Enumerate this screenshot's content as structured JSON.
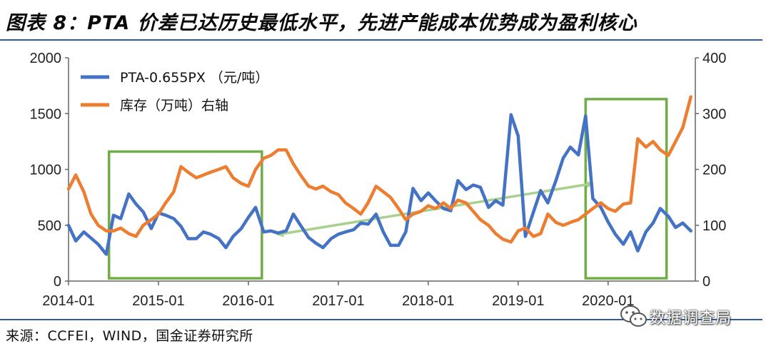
{
  "header": {
    "title": "图表 8：PTA 价差已达历史最低水平，先进产能成本优势成为盈利核心"
  },
  "footer": {
    "source": "来源：CCFEI，WIND，国金证券研究所"
  },
  "watermark": {
    "text": "数据调查局",
    "icon": "wechat-icon"
  },
  "chart_data": {
    "type": "line",
    "title": "",
    "x_ticks": [
      "2014-01",
      "2015-01",
      "2016-01",
      "2017-01",
      "2018-01",
      "2019-01",
      "2020-01"
    ],
    "y_left": {
      "min": 0,
      "max": 2000,
      "ticks": [
        0,
        500,
        1000,
        1500,
        2000
      ]
    },
    "y_right": {
      "min": 0,
      "max": 400,
      "ticks": [
        0,
        100,
        200,
        300,
        400
      ]
    },
    "legend_placement": "top-left",
    "grid": false,
    "series": [
      {
        "name": "PTA-0.655PX （元/吨）",
        "axis": "left",
        "color": "#4472c4",
        "points": [
          [
            2014.0,
            500
          ],
          [
            2014.08,
            360
          ],
          [
            2014.17,
            440
          ],
          [
            2014.33,
            330
          ],
          [
            2014.42,
            240
          ],
          [
            2014.5,
            590
          ],
          [
            2014.58,
            560
          ],
          [
            2014.67,
            780
          ],
          [
            2014.75,
            690
          ],
          [
            2014.83,
            620
          ],
          [
            2014.92,
            470
          ],
          [
            2015.0,
            610
          ],
          [
            2015.08,
            590
          ],
          [
            2015.17,
            560
          ],
          [
            2015.25,
            490
          ],
          [
            2015.33,
            380
          ],
          [
            2015.42,
            380
          ],
          [
            2015.5,
            440
          ],
          [
            2015.58,
            420
          ],
          [
            2015.67,
            380
          ],
          [
            2015.75,
            300
          ],
          [
            2015.83,
            400
          ],
          [
            2015.92,
            470
          ],
          [
            2016.0,
            570
          ],
          [
            2016.08,
            660
          ],
          [
            2016.17,
            440
          ],
          [
            2016.25,
            450
          ],
          [
            2016.33,
            430
          ],
          [
            2016.42,
            450
          ],
          [
            2016.5,
            600
          ],
          [
            2016.58,
            500
          ],
          [
            2016.67,
            390
          ],
          [
            2016.75,
            340
          ],
          [
            2016.83,
            300
          ],
          [
            2016.92,
            380
          ],
          [
            2017.0,
            420
          ],
          [
            2017.08,
            440
          ],
          [
            2017.17,
            460
          ],
          [
            2017.25,
            520
          ],
          [
            2017.33,
            510
          ],
          [
            2017.42,
            600
          ],
          [
            2017.5,
            440
          ],
          [
            2017.58,
            320
          ],
          [
            2017.67,
            320
          ],
          [
            2017.75,
            440
          ],
          [
            2017.83,
            830
          ],
          [
            2017.92,
            720
          ],
          [
            2018.0,
            790
          ],
          [
            2018.08,
            720
          ],
          [
            2018.17,
            650
          ],
          [
            2018.25,
            630
          ],
          [
            2018.33,
            900
          ],
          [
            2018.42,
            820
          ],
          [
            2018.5,
            860
          ],
          [
            2018.58,
            840
          ],
          [
            2018.67,
            660
          ],
          [
            2018.75,
            720
          ],
          [
            2018.83,
            680
          ],
          [
            2018.92,
            1490
          ],
          [
            2019.0,
            1300
          ],
          [
            2019.08,
            400
          ],
          [
            2019.17,
            620
          ],
          [
            2019.25,
            810
          ],
          [
            2019.33,
            700
          ],
          [
            2019.42,
            900
          ],
          [
            2019.5,
            1100
          ],
          [
            2019.58,
            1200
          ],
          [
            2019.67,
            1130
          ],
          [
            2019.75,
            1480
          ],
          [
            2019.83,
            740
          ],
          [
            2019.92,
            660
          ],
          [
            2020.0,
            530
          ],
          [
            2020.08,
            420
          ],
          [
            2020.17,
            330
          ],
          [
            2020.25,
            440
          ],
          [
            2020.33,
            270
          ],
          [
            2020.42,
            440
          ],
          [
            2020.5,
            520
          ],
          [
            2020.58,
            650
          ],
          [
            2020.67,
            580
          ],
          [
            2020.75,
            480
          ],
          [
            2020.83,
            520
          ],
          [
            2020.92,
            450
          ]
        ]
      },
      {
        "name": "库存（万吨）右轴",
        "axis": "right",
        "color": "#ed7d31",
        "points": [
          [
            2014.0,
            165
          ],
          [
            2014.08,
            190
          ],
          [
            2014.17,
            160
          ],
          [
            2014.25,
            120
          ],
          [
            2014.33,
            100
          ],
          [
            2014.42,
            90
          ],
          [
            2014.5,
            90
          ],
          [
            2014.58,
            95
          ],
          [
            2014.67,
            85
          ],
          [
            2014.75,
            80
          ],
          [
            2014.83,
            100
          ],
          [
            2014.92,
            110
          ],
          [
            2015.0,
            120
          ],
          [
            2015.08,
            140
          ],
          [
            2015.17,
            160
          ],
          [
            2015.25,
            205
          ],
          [
            2015.33,
            195
          ],
          [
            2015.42,
            185
          ],
          [
            2015.5,
            190
          ],
          [
            2015.58,
            195
          ],
          [
            2015.67,
            200
          ],
          [
            2015.75,
            205
          ],
          [
            2015.83,
            185
          ],
          [
            2015.92,
            175
          ],
          [
            2016.0,
            170
          ],
          [
            2016.08,
            200
          ],
          [
            2016.17,
            220
          ],
          [
            2016.25,
            225
          ],
          [
            2016.33,
            235
          ],
          [
            2016.42,
            235
          ],
          [
            2016.5,
            210
          ],
          [
            2016.58,
            190
          ],
          [
            2016.67,
            170
          ],
          [
            2016.75,
            165
          ],
          [
            2016.83,
            170
          ],
          [
            2016.92,
            160
          ],
          [
            2017.0,
            155
          ],
          [
            2017.08,
            140
          ],
          [
            2017.17,
            130
          ],
          [
            2017.25,
            120
          ],
          [
            2017.33,
            140
          ],
          [
            2017.42,
            170
          ],
          [
            2017.5,
            160
          ],
          [
            2017.58,
            150
          ],
          [
            2017.67,
            130
          ],
          [
            2017.75,
            110
          ],
          [
            2017.83,
            120
          ],
          [
            2017.92,
            125
          ],
          [
            2018.0,
            135
          ],
          [
            2018.08,
            130
          ],
          [
            2018.17,
            140
          ],
          [
            2018.25,
            130
          ],
          [
            2018.33,
            145
          ],
          [
            2018.42,
            140
          ],
          [
            2018.5,
            125
          ],
          [
            2018.58,
            110
          ],
          [
            2018.67,
            100
          ],
          [
            2018.75,
            85
          ],
          [
            2018.83,
            75
          ],
          [
            2018.92,
            70
          ],
          [
            2019.0,
            90
          ],
          [
            2019.08,
            95
          ],
          [
            2019.17,
            80
          ],
          [
            2019.25,
            85
          ],
          [
            2019.33,
            120
          ],
          [
            2019.42,
            105
          ],
          [
            2019.5,
            100
          ],
          [
            2019.58,
            105
          ],
          [
            2019.67,
            110
          ],
          [
            2019.75,
            120
          ],
          [
            2019.83,
            130
          ],
          [
            2019.92,
            140
          ],
          [
            2020.0,
            130
          ],
          [
            2020.08,
            125
          ],
          [
            2020.17,
            138
          ],
          [
            2020.25,
            140
          ],
          [
            2020.33,
            255
          ],
          [
            2020.42,
            240
          ],
          [
            2020.5,
            250
          ],
          [
            2020.58,
            235
          ],
          [
            2020.67,
            225
          ],
          [
            2020.75,
            250
          ],
          [
            2020.83,
            275
          ],
          [
            2020.92,
            330
          ]
        ]
      }
    ],
    "annotations": [
      {
        "type": "box",
        "x_range": [
          2014.45,
          2016.15
        ],
        "y_range_left": [
          25,
          1160
        ],
        "color": "#70ad47"
      },
      {
        "type": "box",
        "x_range": [
          2019.75,
          2020.65
        ],
        "y_range_left": [
          25,
          1630
        ],
        "color": "#70ad47"
      },
      {
        "type": "double-arrow",
        "from": [
          2016.35,
          420
        ],
        "to": [
          2019.8,
          870
        ],
        "color": "#a9d18e"
      }
    ]
  }
}
